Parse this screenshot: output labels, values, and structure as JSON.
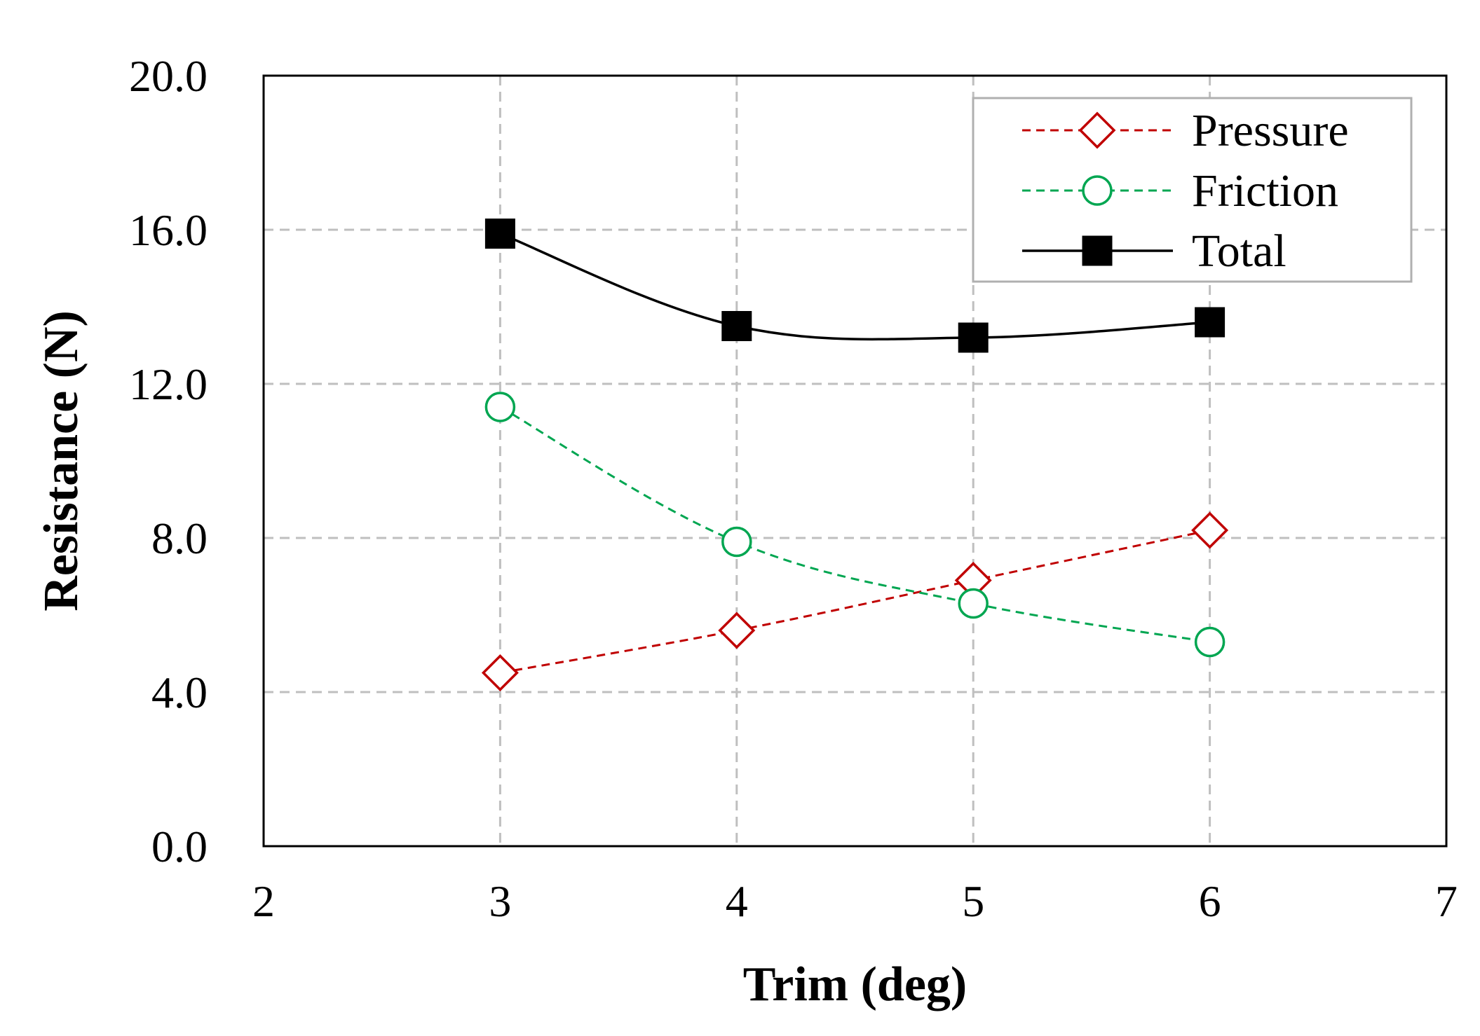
{
  "chart_data": {
    "type": "line",
    "title": "",
    "xlabel": "Trim (deg)",
    "ylabel": "Resistance (N)",
    "xlim": [
      2,
      7
    ],
    "ylim": [
      0,
      20
    ],
    "xticks": [
      2,
      3,
      4,
      5,
      6,
      7
    ],
    "yticks": [
      0,
      4,
      8,
      12,
      16,
      20
    ],
    "xtick_labels": [
      "2",
      "3",
      "4",
      "5",
      "6",
      "7"
    ],
    "ytick_labels": [
      "0.0",
      "4.0",
      "8.0",
      "12.0",
      "16.0",
      "20.0"
    ],
    "grid": true,
    "legend_position": "top-right",
    "x": [
      3,
      4,
      5,
      6
    ],
    "series": [
      {
        "name": "Pressure",
        "values": [
          4.5,
          5.6,
          6.9,
          8.2
        ],
        "color": "#c00000",
        "line_style": "dashed",
        "marker": "diamond-open"
      },
      {
        "name": "Friction",
        "values": [
          11.4,
          7.9,
          6.3,
          5.3
        ],
        "color": "#00a651",
        "line_style": "dashed",
        "marker": "circle-open"
      },
      {
        "name": "Total",
        "values": [
          15.9,
          13.5,
          13.2,
          13.6
        ],
        "color": "#000000",
        "line_style": "solid",
        "marker": "square-filled"
      }
    ]
  }
}
